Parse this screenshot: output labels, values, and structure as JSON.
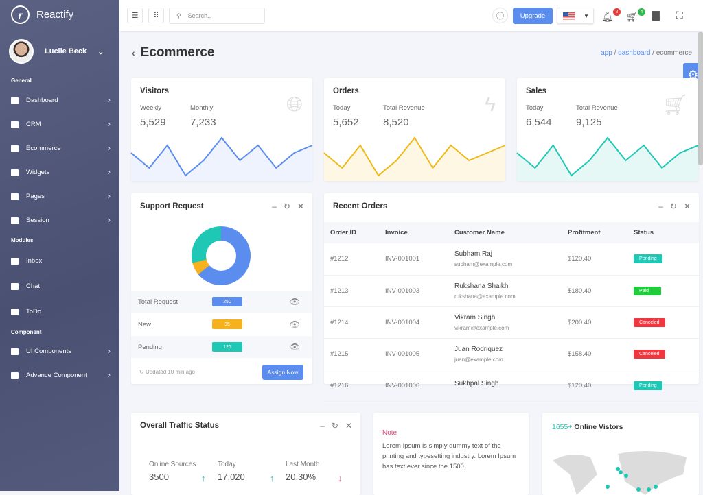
{
  "app": {
    "name": "Reactify"
  },
  "user": {
    "name": "Lucile Beck"
  },
  "sidebar": {
    "sections": [
      "General",
      "Modules",
      "Component"
    ],
    "general": [
      {
        "label": "Dashboard"
      },
      {
        "label": "CRM"
      },
      {
        "label": "Ecommerce"
      },
      {
        "label": "Widgets"
      },
      {
        "label": "Pages"
      },
      {
        "label": "Session"
      }
    ],
    "modules": [
      {
        "label": "Inbox"
      },
      {
        "label": "Chat"
      },
      {
        "label": "ToDo"
      }
    ],
    "component": [
      {
        "label": "UI Components"
      },
      {
        "label": "Advance Component"
      }
    ]
  },
  "topbar": {
    "search_placeholder": "Search..",
    "upgrade": "Upgrade",
    "notifications": "2",
    "cart": "4"
  },
  "page": {
    "title": "Ecommerce",
    "breadcrumb": [
      "app",
      "dashboard",
      "ecommerce"
    ]
  },
  "stats": [
    {
      "title": "Visitors",
      "l1": "Weekly",
      "v1": "5,529",
      "l2": "Monthly",
      "v2": "7,233",
      "icon": "globe-icon",
      "color": "#5b8def",
      "fill": "#eef3fd",
      "spark": [
        3,
        1,
        4,
        0,
        2,
        5,
        2,
        4,
        1,
        3,
        4
      ]
    },
    {
      "title": "Orders",
      "l1": "Today",
      "v1": "5,652",
      "l2": "Total Revenue",
      "v2": "8,520",
      "icon": "bolt-icon",
      "color": "#f0b91a",
      "fill": "#fdf7e3",
      "spark": [
        3,
        1,
        4,
        0,
        2,
        5,
        1,
        4,
        2,
        3,
        4
      ]
    },
    {
      "title": "Sales",
      "l1": "Today",
      "v1": "6,544",
      "l2": "Total Revenue",
      "v2": "9,125",
      "icon": "cart-icon",
      "color": "#1ec8b4",
      "fill": "#e6f8f6",
      "spark": [
        3,
        1,
        4,
        0,
        2,
        5,
        2,
        4,
        1,
        3,
        4
      ]
    }
  ],
  "support": {
    "title": "Support Request",
    "rows": [
      {
        "label": "Total Request",
        "value": "250",
        "color": "#5b8def"
      },
      {
        "label": "New",
        "value": "35",
        "color": "#f5b21c"
      },
      {
        "label": "Pending",
        "value": "125",
        "color": "#1ec8b4"
      }
    ],
    "updated": "Updated 10 min ago",
    "assign": "Assign Now"
  },
  "orders": {
    "title": "Recent Orders",
    "columns": [
      "Order ID",
      "Invoice",
      "Customer Name",
      "Profitment",
      "Status"
    ],
    "rows": [
      {
        "id": "#1212",
        "invoice": "INV-001001",
        "name": "Subham Raj",
        "email": "subham@example.com",
        "profit": "$120.40",
        "status": "Pending",
        "color": "#1ec8b4"
      },
      {
        "id": "#1213",
        "invoice": "INV-001003",
        "name": "Rukshana Shaikh",
        "email": "rukshana@example.com",
        "profit": "$180.40",
        "status": "Paid",
        "color": "#1fcc3a"
      },
      {
        "id": "#1214",
        "invoice": "INV-001004",
        "name": "Vikram Singh",
        "email": "vikram@example.com",
        "profit": "$200.40",
        "status": "Canceled",
        "color": "#f0373f"
      },
      {
        "id": "#1215",
        "invoice": "INV-001005",
        "name": "Juan Rodriquez",
        "email": "juan@example.com",
        "profit": "$158.40",
        "status": "Canceled",
        "color": "#f0373f"
      },
      {
        "id": "#1216",
        "invoice": "INV-001006",
        "name": "Sukhpal Singh",
        "email": "",
        "profit": "$120.40",
        "status": "Pending",
        "color": "#1ec8b4"
      }
    ]
  },
  "traffic": {
    "title": "Overall Traffic Status",
    "items": [
      {
        "label": "Online Sources",
        "value": "3500",
        "trend": "up"
      },
      {
        "label": "Today",
        "value": "17,020",
        "trend": "up"
      },
      {
        "label": "Last Month",
        "value": "20.30%",
        "trend": "down"
      }
    ]
  },
  "note": {
    "title": "Note",
    "text": "Lorem Ipsum is simply dummy text of the printing and typesetting industry. Lorem Ipsum has text ever since the 1500."
  },
  "online": {
    "count": "1655+",
    "label": "Online Vistors"
  }
}
